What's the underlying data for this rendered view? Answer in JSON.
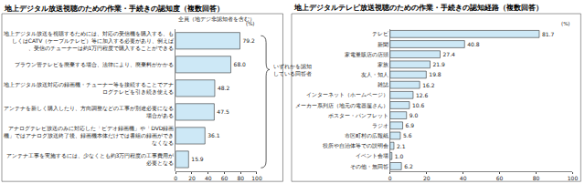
{
  "chart_data": [
    {
      "type": "bar",
      "orientation": "horizontal",
      "title": "地上デジタル放送視聴のための作業・手続きの認知度（複数回答）",
      "subtitle": "全員（地デジ非認知者を含む）",
      "xlabel": "(%)",
      "categories": [
        "地上デジタル放送を視聴するためには、対応の受信機を購入する、もしくはCATV（ケーブルテレビ）等に加入する必要があり、例えば、受信のチューナーは約1万円程度で購入することができる",
        "ブラウン管テレビを廃棄する場合、法律により、廃棄料がかかる",
        "地上デジタル放送対応の録画機・チューナー等を接続することでアナログテレビを引き続き使える",
        "アンテナを新しく購入したり、方向調整などの工事が別途必要になる場合がある",
        "アナログテレビ放送のみに対応した「ビデオ録画機」や「DVD録画機」ではアナログ放送終了後、録画機本体だけでは番組の録画ができなくなる",
        "アンテナ工事を実施するには、少なくとも約3万円程度の工事費用が必要となる"
      ],
      "values": [
        79.2,
        68.0,
        48.2,
        47.5,
        36.1,
        15.9
      ],
      "value_labels": [
        "79.2",
        "68.0",
        "48.2",
        "47.5",
        "36.1",
        "15.9"
      ],
      "color": "#cde8f6",
      "xlim": [
        0,
        100
      ],
      "xticks": [
        0,
        20,
        40,
        60,
        80,
        100
      ],
      "grid": false,
      "data_labels": true,
      "annotation": "いずれかを認知している回答者"
    },
    {
      "type": "bar",
      "orientation": "horizontal",
      "title": "地上デジタルテレビ放送視聴のための作業・手続きの認知経路（複数回答）",
      "xlabel": "(%)",
      "categories": [
        "テレビ",
        "新聞",
        "家電量販店の店頭",
        "家族",
        "友人・知人",
        "雑誌",
        "インターネット（ホームページ）",
        "メーカー系列店（地元の電器屋さん）",
        "ポスター・パンフレット",
        "ラジオ",
        "市区町村の広報紙",
        "役所や自治体等での説明会",
        "イベント会場",
        "その他・無回答"
      ],
      "values": [
        81.7,
        40.8,
        27.4,
        21.9,
        19.8,
        16.2,
        12.6,
        10.6,
        9.0,
        6.9,
        5.6,
        2.1,
        1.0,
        6.2
      ],
      "value_labels": [
        "81.7",
        "40.8",
        "27.4",
        "21.9",
        "19.8",
        "16.2",
        "12.6",
        "10.6",
        "9.0",
        "6.9",
        "5.6",
        "2.1",
        "1.0",
        "6.2"
      ],
      "color": "#cde8f6",
      "xlim": [
        0,
        100
      ],
      "xticks": [
        0,
        20,
        40,
        60,
        80,
        100
      ],
      "grid": false,
      "data_labels": true
    }
  ]
}
